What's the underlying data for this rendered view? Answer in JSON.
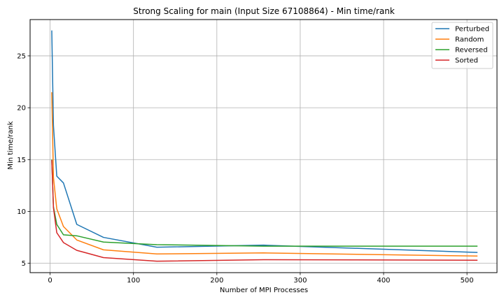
{
  "chart_data": {
    "type": "line",
    "title": "Strong Scaling for main (Input Size 67108864) - Min time/rank",
    "xlabel": "Number of MPI Processes",
    "ylabel": "Min time/rank",
    "xlim": [
      -24,
      536
    ],
    "ylim": [
      4.1,
      28.5
    ],
    "xticks": [
      0,
      100,
      200,
      300,
      400,
      500
    ],
    "yticks": [
      5,
      10,
      15,
      20,
      25
    ],
    "grid": true,
    "legend_position": "top-right",
    "x": [
      2,
      4,
      8,
      16,
      32,
      64,
      128,
      256,
      512
    ],
    "series": [
      {
        "name": "Perturbed",
        "color": "#1f77b4",
        "values": [
          27.4,
          18.3,
          13.4,
          12.75,
          8.75,
          7.5,
          6.55,
          6.75,
          6.05
        ]
      },
      {
        "name": "Random",
        "color": "#ff7f0e",
        "values": [
          21.45,
          13.3,
          10.25,
          8.55,
          7.25,
          6.3,
          5.9,
          6.0,
          5.7
        ]
      },
      {
        "name": "Reversed",
        "color": "#2ca02c",
        "values": [
          14.95,
          10.45,
          8.75,
          7.75,
          7.65,
          7.05,
          6.8,
          6.65,
          6.65
        ]
      },
      {
        "name": "Sorted",
        "color": "#d62728",
        "values": [
          14.9,
          10.35,
          7.95,
          7.0,
          6.25,
          5.55,
          5.2,
          5.35,
          5.3
        ]
      }
    ]
  }
}
